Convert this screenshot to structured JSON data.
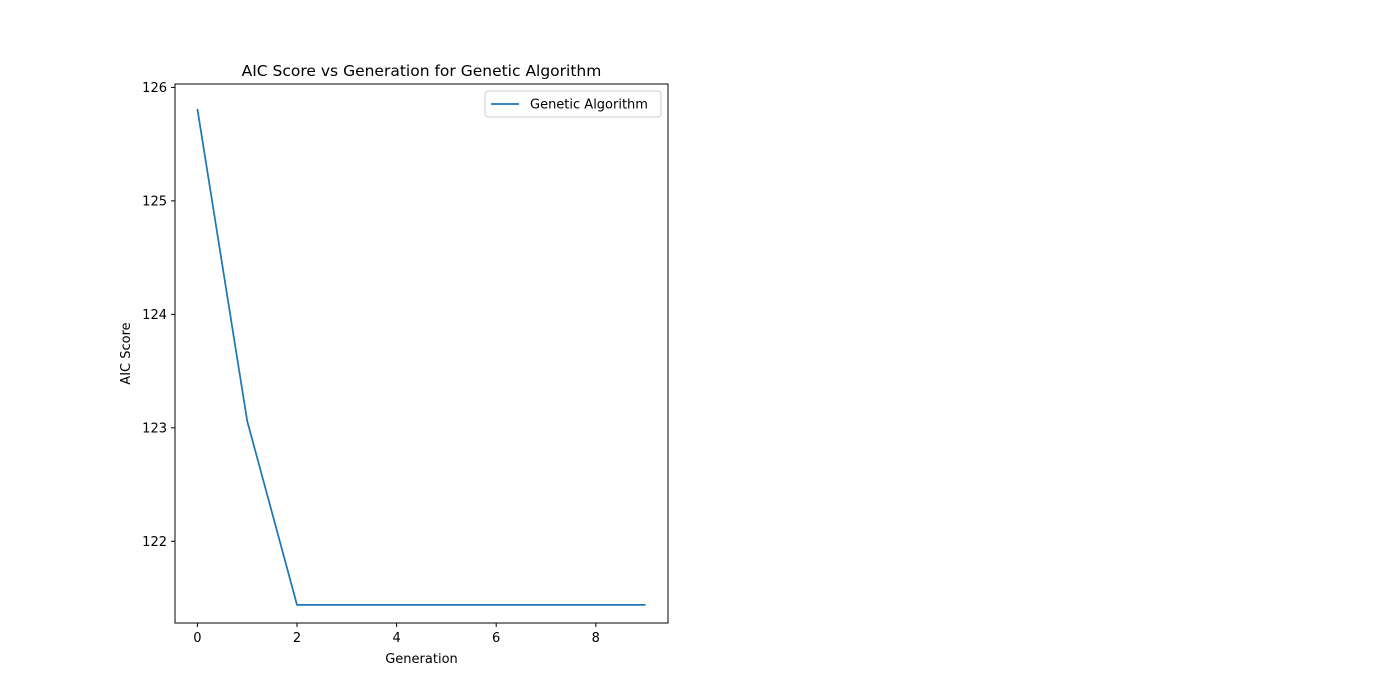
{
  "chart_data": {
    "type": "line",
    "title": "AIC Score vs Generation for Genetic Algorithm",
    "xlabel": "Generation",
    "ylabel": "AIC Score",
    "xlim": [
      -0.45,
      9.45
    ],
    "ylim": [
      121.28,
      126.03
    ],
    "xticks": [
      0,
      2,
      4,
      6,
      8
    ],
    "yticks": [
      122,
      123,
      124,
      125,
      126
    ],
    "grid": false,
    "legend_position": "top-right",
    "series": [
      {
        "name": "Genetic Algorithm",
        "color": "#1f77b4",
        "x": [
          0,
          1,
          2,
          3,
          4,
          5,
          6,
          7,
          8,
          9
        ],
        "y": [
          125.81,
          123.06,
          121.44,
          121.44,
          121.44,
          121.44,
          121.44,
          121.44,
          121.44,
          121.44
        ]
      }
    ]
  }
}
